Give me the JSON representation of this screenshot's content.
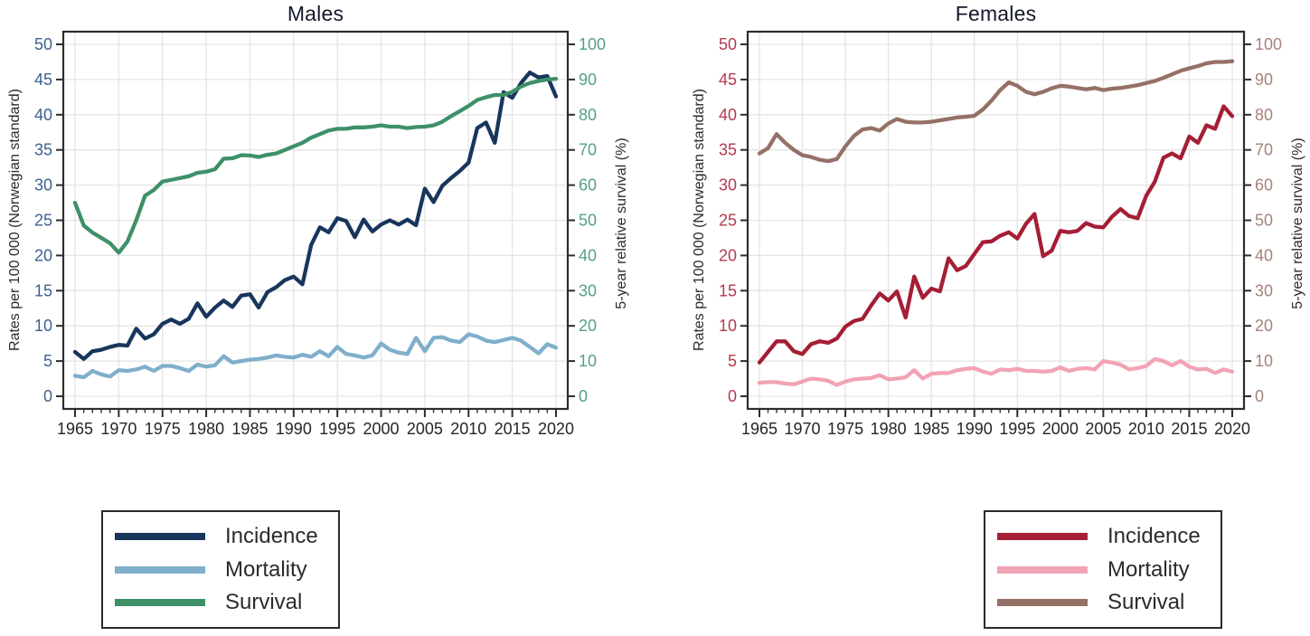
{
  "style": {
    "grid_color": "#e4e4e4",
    "axis_color": "#2e2e2e",
    "x_tick_color": "#262626",
    "axis_title_color": "#2b2b2b",
    "title_color": "#15182b",
    "legend_border_color": "#2b2b2b",
    "legend_text_color": "#2b2b2b",
    "charts": [
      {
        "id": "males",
        "left_tick_color": "#3a6191",
        "right_tick_color": "#55a181"
      },
      {
        "id": "females",
        "left_tick_color": "#b23a50",
        "right_tick_color": "#a6837b"
      }
    ]
  },
  "chart_data": [
    {
      "type": "line",
      "title": "Males",
      "xlabel": "",
      "ylabel_left": "Rates per 100 000 (Norwegian standard)",
      "ylabel_right": "5-year relative survival (%)",
      "xlim": [
        1965,
        2020
      ],
      "ylim_left": [
        0,
        50
      ],
      "ylim_right": [
        0,
        100
      ],
      "grid": true,
      "legend_position": "below-left",
      "x_major_ticks": [
        1965,
        1970,
        1975,
        1980,
        1985,
        1990,
        1995,
        2000,
        2005,
        2010,
        2015,
        2020
      ],
      "y_left_ticks": [
        0,
        5,
        10,
        15,
        20,
        25,
        30,
        35,
        40,
        45,
        50
      ],
      "y_right_ticks": [
        0,
        10,
        20,
        30,
        40,
        50,
        60,
        70,
        80,
        90,
        100
      ],
      "x": [
        1965,
        1966,
        1967,
        1968,
        1969,
        1970,
        1971,
        1972,
        1973,
        1974,
        1975,
        1976,
        1977,
        1978,
        1979,
        1980,
        1981,
        1982,
        1983,
        1984,
        1985,
        1986,
        1987,
        1988,
        1989,
        1990,
        1991,
        1992,
        1993,
        1994,
        1995,
        1996,
        1997,
        1998,
        1999,
        2000,
        2001,
        2002,
        2003,
        2004,
        2005,
        2006,
        2007,
        2008,
        2009,
        2010,
        2011,
        2012,
        2013,
        2014,
        2015,
        2016,
        2017,
        2018,
        2019,
        2020
      ],
      "series": [
        {
          "name": "Incidence",
          "axis": "left",
          "color": "#18365c",
          "values": [
            6.3,
            5.3,
            6.4,
            6.6,
            7.0,
            7.3,
            7.2,
            9.6,
            8.2,
            8.8,
            10.3,
            10.9,
            10.3,
            11.0,
            13.2,
            11.3,
            12.6,
            13.6,
            12.7,
            14.3,
            14.5,
            12.6,
            14.8,
            15.5,
            16.5,
            17.0,
            15.9,
            21.5,
            24.0,
            23.3,
            25.3,
            24.9,
            22.6,
            25.1,
            23.4,
            24.4,
            25.0,
            24.4,
            25.1,
            24.3,
            29.5,
            27.6,
            29.9,
            31.0,
            32.0,
            33.2,
            38.1,
            38.9,
            36.0,
            43.2,
            42.4,
            44.5,
            46.0,
            45.3,
            45.5,
            42.6
          ]
        },
        {
          "name": "Mortality",
          "axis": "left",
          "color": "#7fafca",
          "values": [
            2.9,
            2.7,
            3.6,
            3.1,
            2.8,
            3.7,
            3.6,
            3.8,
            4.2,
            3.6,
            4.3,
            4.3,
            4.0,
            3.6,
            4.5,
            4.2,
            4.4,
            5.7,
            4.8,
            5.0,
            5.2,
            5.3,
            5.5,
            5.8,
            5.6,
            5.5,
            5.9,
            5.6,
            6.4,
            5.7,
            7.0,
            6.0,
            5.8,
            5.5,
            5.8,
            7.5,
            6.6,
            6.2,
            6.0,
            8.3,
            6.4,
            8.3,
            8.4,
            7.9,
            7.7,
            8.8,
            8.5,
            7.9,
            7.7,
            8.0,
            8.3,
            7.9,
            7.0,
            6.1,
            7.4,
            6.9
          ]
        },
        {
          "name": "Survival",
          "axis": "right",
          "color": "#3e9069",
          "values": [
            55.0,
            48.5,
            46.5,
            45.0,
            43.5,
            40.8,
            44.0,
            50.0,
            57.0,
            58.6,
            61.0,
            61.5,
            62.0,
            62.5,
            63.5,
            63.8,
            64.5,
            67.5,
            67.6,
            68.5,
            68.4,
            68.0,
            68.6,
            69.0,
            70.0,
            71.0,
            72.0,
            73.5,
            74.5,
            75.5,
            76.0,
            76.0,
            76.4,
            76.4,
            76.6,
            77.0,
            76.6,
            76.6,
            76.2,
            76.5,
            76.6,
            77.0,
            78.0,
            79.6,
            81.0,
            82.5,
            84.2,
            85.0,
            85.6,
            85.6,
            86.5,
            88.0,
            89.0,
            89.6,
            90.0,
            90.2
          ]
        }
      ]
    },
    {
      "type": "line",
      "title": "Females",
      "xlabel": "",
      "ylabel_left": "Rates per 100 000 (Norwegian standard)",
      "ylabel_right": "5-year relative survival (%)",
      "xlim": [
        1965,
        2020
      ],
      "ylim_left": [
        0,
        50
      ],
      "ylim_right": [
        0,
        100
      ],
      "grid": true,
      "legend_position": "below-left",
      "x_major_ticks": [
        1965,
        1970,
        1975,
        1980,
        1985,
        1990,
        1995,
        2000,
        2005,
        2010,
        2015,
        2020
      ],
      "y_left_ticks": [
        0,
        5,
        10,
        15,
        20,
        25,
        30,
        35,
        40,
        45,
        50
      ],
      "y_right_ticks": [
        0,
        10,
        20,
        30,
        40,
        50,
        60,
        70,
        80,
        90,
        100
      ],
      "x": [
        1965,
        1966,
        1967,
        1968,
        1969,
        1970,
        1971,
        1972,
        1973,
        1974,
        1975,
        1976,
        1977,
        1978,
        1979,
        1980,
        1981,
        1982,
        1983,
        1984,
        1985,
        1986,
        1987,
        1988,
        1989,
        1990,
        1991,
        1992,
        1993,
        1994,
        1995,
        1996,
        1997,
        1998,
        1999,
        2000,
        2001,
        2002,
        2003,
        2004,
        2005,
        2006,
        2007,
        2008,
        2009,
        2010,
        2011,
        2012,
        2013,
        2014,
        2015,
        2016,
        2017,
        2018,
        2019,
        2020
      ],
      "series": [
        {
          "name": "Incidence",
          "axis": "left",
          "color": "#a51e35",
          "values": [
            4.8,
            6.3,
            7.8,
            7.8,
            6.4,
            6.0,
            7.4,
            7.8,
            7.6,
            8.2,
            9.9,
            10.7,
            11.0,
            12.9,
            14.6,
            13.6,
            14.9,
            11.2,
            17.0,
            14.0,
            15.3,
            14.9,
            19.6,
            17.9,
            18.5,
            20.2,
            21.9,
            22.0,
            22.8,
            23.3,
            22.4,
            24.5,
            25.9,
            19.9,
            20.7,
            23.5,
            23.3,
            23.5,
            24.6,
            24.1,
            24.0,
            25.5,
            26.6,
            25.6,
            25.3,
            28.5,
            30.5,
            33.9,
            34.5,
            33.8,
            36.9,
            36.0,
            38.5,
            38.0,
            41.2,
            39.8
          ]
        },
        {
          "name": "Mortality",
          "axis": "left",
          "color": "#f2a3b4",
          "values": [
            1.9,
            2.0,
            2.0,
            1.8,
            1.7,
            2.1,
            2.5,
            2.4,
            2.2,
            1.6,
            2.1,
            2.4,
            2.5,
            2.6,
            3.0,
            2.4,
            2.5,
            2.7,
            3.7,
            2.5,
            3.2,
            3.3,
            3.3,
            3.7,
            3.9,
            4.0,
            3.5,
            3.2,
            3.8,
            3.7,
            3.9,
            3.6,
            3.6,
            3.5,
            3.6,
            4.1,
            3.6,
            3.9,
            4.0,
            3.8,
            5.0,
            4.8,
            4.5,
            3.8,
            4.0,
            4.3,
            5.3,
            5.0,
            4.4,
            5.0,
            4.2,
            3.8,
            3.9,
            3.3,
            3.8,
            3.5
          ]
        },
        {
          "name": "Survival",
          "axis": "right",
          "color": "#957067",
          "values": [
            69.0,
            70.5,
            74.5,
            72.0,
            70.0,
            68.5,
            68.0,
            67.2,
            66.8,
            67.4,
            71.0,
            74.0,
            75.8,
            76.2,
            75.5,
            77.5,
            78.8,
            78.0,
            77.8,
            77.8,
            78.0,
            78.4,
            78.8,
            79.2,
            79.4,
            79.7,
            81.5,
            84.0,
            87.0,
            89.2,
            88.2,
            86.5,
            85.8,
            86.5,
            87.5,
            88.2,
            88.0,
            87.6,
            87.2,
            87.6,
            87.0,
            87.4,
            87.6,
            88.0,
            88.4,
            89.0,
            89.6,
            90.5,
            91.5,
            92.5,
            93.2,
            93.8,
            94.6,
            95.0,
            95.0,
            95.2
          ]
        }
      ]
    }
  ]
}
